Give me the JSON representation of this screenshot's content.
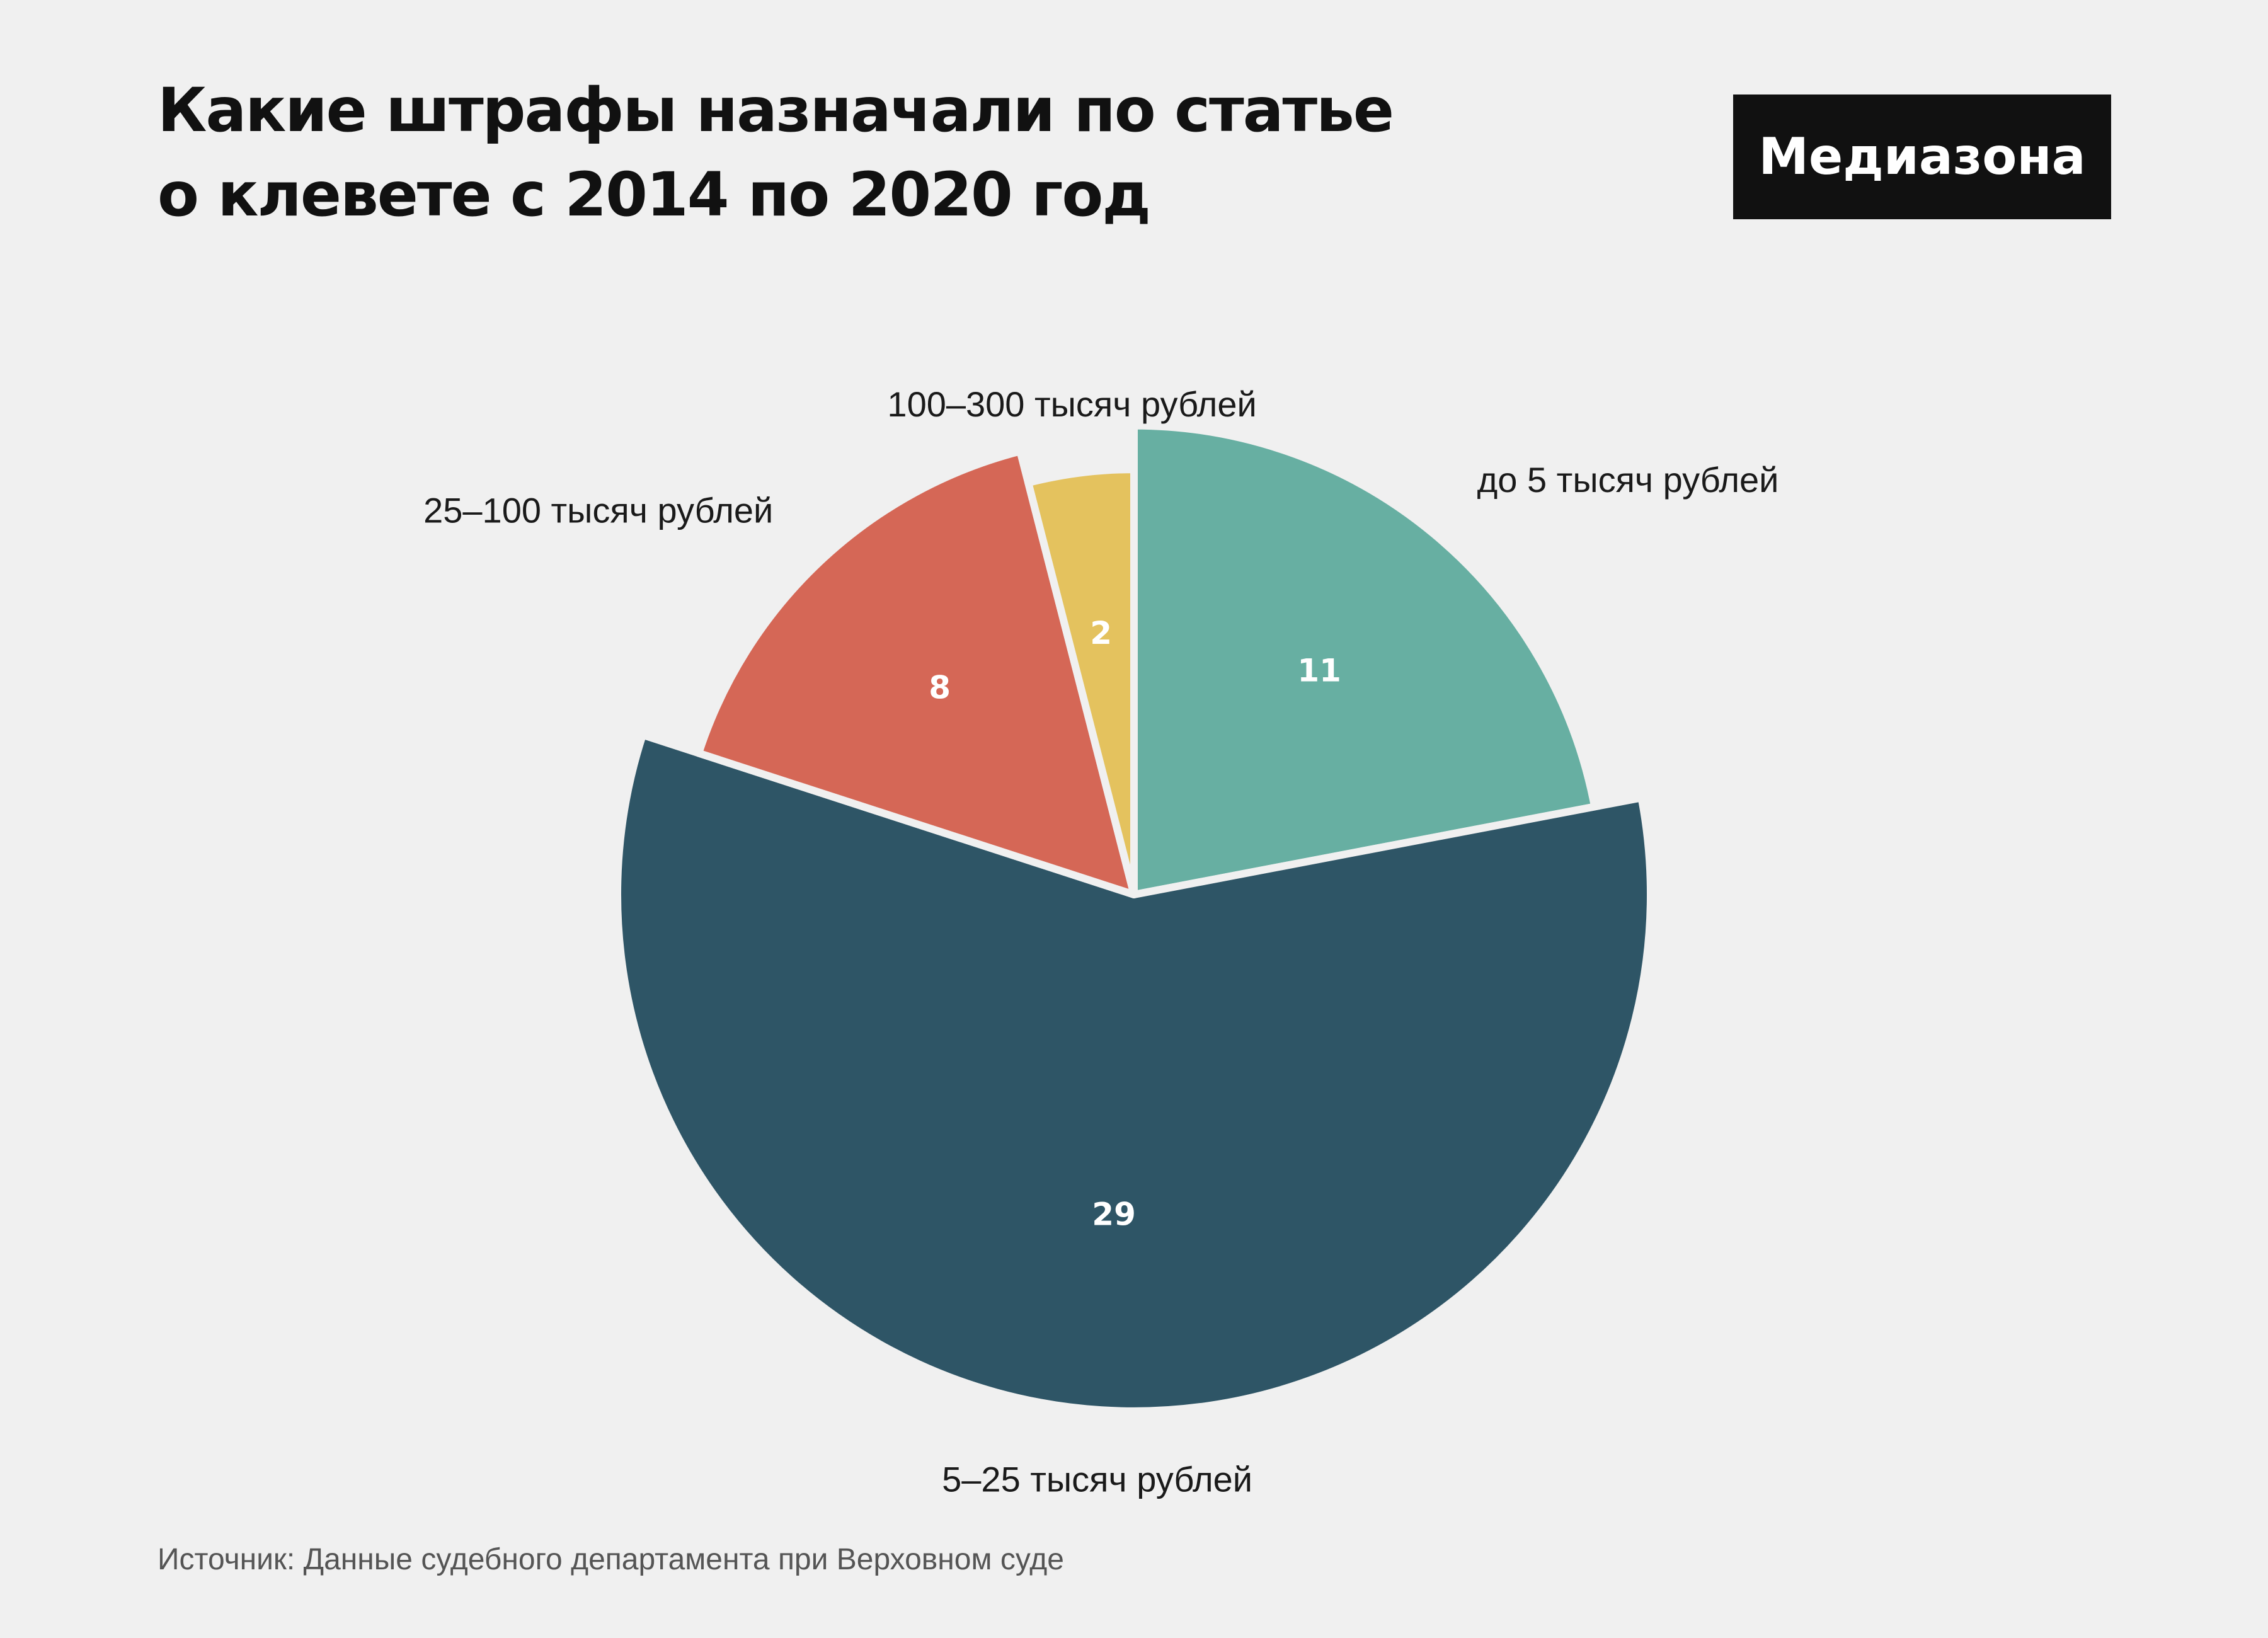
{
  "header": {
    "title_line1": "Какие штрафы назначали по статье",
    "title_line2": "о клевете с 2014 по 2020 год",
    "brand": "Медиазона"
  },
  "footer": {
    "source": "Источник: Данные судебного департамента при Верховном суде"
  },
  "colors": {
    "background": "#f0f0f0",
    "separator": "#f0f0f0",
    "label_text": "#1a1a1a",
    "value_text": "#ffffff"
  },
  "chart_data": {
    "type": "pie",
    "categories": [
      "до 5 тысяч рублей",
      "5–25 тысяч рублей",
      "25–100 тысяч рублей",
      "100–300 тысяч рублей"
    ],
    "values": [
      11,
      29,
      8,
      2
    ],
    "colors": [
      "#67afa2",
      "#2e5566",
      "#d56756",
      "#e4c25e"
    ],
    "start": "top",
    "direction": "clockwise",
    "legend": "none"
  }
}
